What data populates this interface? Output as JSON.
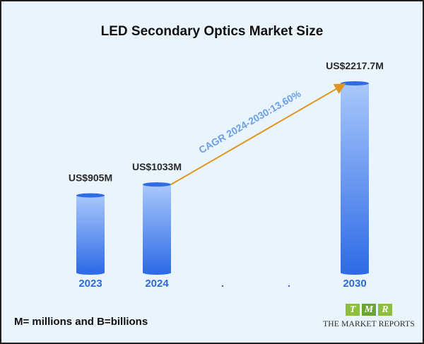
{
  "chart_data": {
    "type": "bar",
    "title": "LED Secondary Optics Market Size",
    "categories": [
      "2023",
      "2024",
      ".",
      ".",
      "2030"
    ],
    "values": [
      905,
      1033,
      null,
      null,
      2217.7
    ],
    "value_labels": [
      "US$905M",
      "US$1033M",
      "",
      "",
      "US$2217.7M"
    ],
    "cagr_label": "CAGR 2024-2030:13.60%",
    "unit": "US$ M",
    "ylim": [
      0,
      2400
    ],
    "grid": false,
    "legend": "none",
    "bar_color_top": "#a9c8fb",
    "bar_color_bottom": "#2f6be6",
    "category_label_color": "#2f6bd6",
    "arrow_color": "#e0951f",
    "cagr_color": "#6a9fe6"
  },
  "footnote": "M= millions and B=billions",
  "logo": {
    "letters": [
      "T",
      "M",
      "R"
    ],
    "colors": [
      "#8dbf3f",
      "#6aa530",
      "#8dbf3f"
    ],
    "text": "THE MARKET REPORTS"
  }
}
